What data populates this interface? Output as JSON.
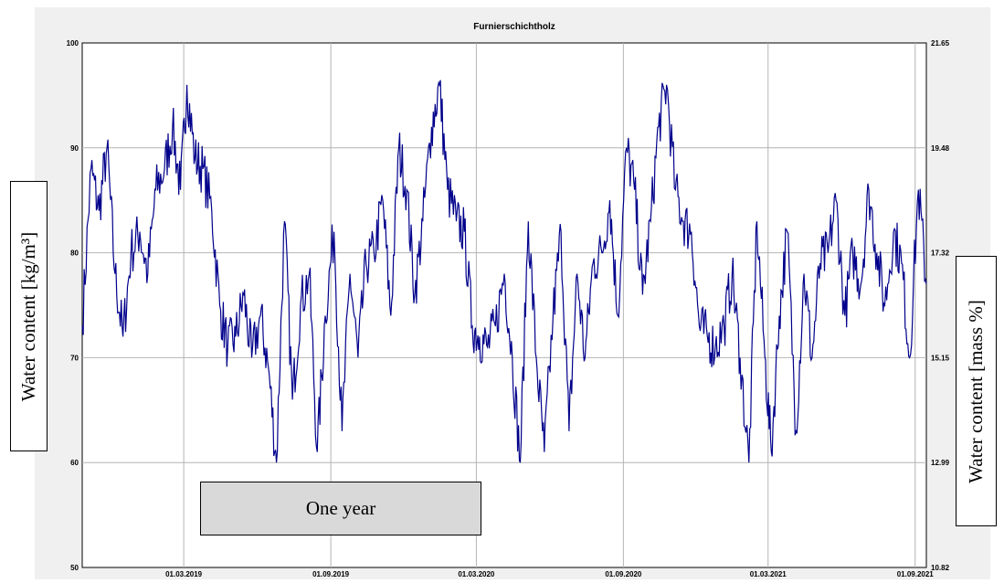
{
  "chart_data": {
    "type": "line",
    "title": "Furnierschichtholz",
    "ylabel": "Water content [kg/m³]",
    "y2label": "Water content [mass %]",
    "ylim": [
      50,
      100
    ],
    "y2lim": [
      10.82,
      21.65
    ],
    "yticks": [
      "100",
      "90",
      "80",
      "70",
      "60",
      "50"
    ],
    "y2ticks": [
      "21.65",
      "19.48",
      "17.32",
      "15.15",
      "12.99",
      "10.82"
    ],
    "xticks": [
      "01.03.2019",
      "01.09.2019",
      "01.03.2020",
      "01.09.2020",
      "01.03.2021",
      "01.09.2021"
    ],
    "xlim": [
      "2018-10-25",
      "2021-09-15"
    ],
    "grid": true,
    "line_color": "#00008b",
    "series": [
      {
        "x": [
          "2018-10-25",
          "2018-11-05",
          "2018-11-15",
          "2018-11-25",
          "2018-12-05",
          "2018-12-15",
          "2018-12-25",
          "2019-01-05",
          "2019-01-15",
          "2019-01-25",
          "2019-02-05",
          "2019-02-15",
          "2019-02-25",
          "2019-03-05",
          "2019-03-15",
          "2019-03-25",
          "2019-04-05",
          "2019-04-15",
          "2019-04-25",
          "2019-05-05",
          "2019-05-15",
          "2019-05-25",
          "2019-06-05",
          "2019-06-15",
          "2019-06-25",
          "2019-07-05",
          "2019-07-15",
          "2019-07-25",
          "2019-08-05",
          "2019-08-15",
          "2019-08-25",
          "2019-09-05",
          "2019-09-15",
          "2019-09-25",
          "2019-10-05",
          "2019-10-15",
          "2019-10-25",
          "2019-11-05",
          "2019-11-15",
          "2019-11-25",
          "2019-12-05",
          "2019-12-15",
          "2019-12-25",
          "2020-01-05",
          "2020-01-15",
          "2020-01-25",
          "2020-02-05",
          "2020-02-15",
          "2020-02-25",
          "2020-03-05",
          "2020-03-15",
          "2020-03-25",
          "2020-04-05",
          "2020-04-15",
          "2020-04-25",
          "2020-05-05",
          "2020-05-15",
          "2020-05-25",
          "2020-06-05",
          "2020-06-15",
          "2020-06-25",
          "2020-07-05",
          "2020-07-15",
          "2020-07-25",
          "2020-08-05",
          "2020-08-15",
          "2020-08-25",
          "2020-09-05",
          "2020-09-15",
          "2020-09-25",
          "2020-10-05",
          "2020-10-15",
          "2020-10-25",
          "2020-11-05",
          "2020-11-15",
          "2020-11-25",
          "2020-12-05",
          "2020-12-15",
          "2020-12-25",
          "2021-01-05",
          "2021-01-15",
          "2021-01-25",
          "2021-02-05",
          "2021-02-15",
          "2021-02-25",
          "2021-03-05",
          "2021-03-15",
          "2021-03-25",
          "2021-04-05",
          "2021-04-15",
          "2021-04-25",
          "2021-05-05",
          "2021-05-15",
          "2021-05-25",
          "2021-06-05",
          "2021-06-15",
          "2021-06-25",
          "2021-07-05",
          "2021-07-15",
          "2021-07-25",
          "2021-08-05",
          "2021-08-15",
          "2021-08-25",
          "2021-09-05",
          "2021-09-15"
        ],
        "values": [
          73,
          88,
          84,
          90,
          78,
          72,
          80,
          82,
          78,
          86,
          88,
          92,
          86,
          96,
          89,
          88,
          84,
          75,
          71,
          72,
          76,
          70,
          74,
          69,
          60,
          83,
          66,
          75,
          78,
          61,
          74,
          82,
          63,
          78,
          70,
          79,
          80,
          85,
          74,
          90,
          86,
          76,
          83,
          92,
          96,
          86,
          83,
          82,
          73,
          72,
          71,
          73,
          78,
          70,
          60,
          83,
          70,
          61,
          74,
          82,
          63,
          78,
          70,
          79,
          80,
          85,
          74,
          90,
          86,
          76,
          83,
          92,
          96,
          86,
          83,
          82,
          73,
          72,
          71,
          73,
          78,
          70,
          60,
          83,
          70,
          61,
          74,
          82,
          63,
          78,
          70,
          79,
          80,
          85,
          74,
          80,
          77,
          86,
          80,
          75,
          82,
          79,
          70,
          86,
          77
        ]
      }
    ]
  },
  "annotations": {
    "year_label": "One year"
  }
}
